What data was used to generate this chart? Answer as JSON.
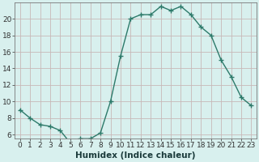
{
  "x": [
    0,
    1,
    2,
    3,
    4,
    5,
    6,
    7,
    8,
    9,
    10,
    11,
    12,
    13,
    14,
    15,
    16,
    17,
    18,
    19,
    20,
    21,
    22,
    23
  ],
  "y": [
    9,
    8,
    7.2,
    7,
    6.5,
    5,
    5.5,
    5.5,
    6.2,
    10,
    15.5,
    20,
    20.5,
    20.5,
    21.5,
    21,
    21.5,
    20.5,
    19,
    18,
    15,
    13,
    10.5,
    9.5
  ],
  "line_color": "#2d7a6a",
  "marker_color": "#2d7a6a",
  "bg_color": "#d8f0ee",
  "grid_color_v": "#c8b8b8",
  "grid_color_h": "#c8b8b8",
  "xlabel": "Humidex (Indice chaleur)",
  "xlim": [
    -0.5,
    23.5
  ],
  "ylim": [
    5.5,
    22.0
  ],
  "yticks": [
    6,
    8,
    10,
    12,
    14,
    16,
    18,
    20
  ],
  "xticks": [
    0,
    1,
    2,
    3,
    4,
    5,
    6,
    7,
    8,
    9,
    10,
    11,
    12,
    13,
    14,
    15,
    16,
    17,
    18,
    19,
    20,
    21,
    22,
    23
  ],
  "xlabel_fontsize": 7.5,
  "tick_fontsize": 6.5,
  "marker_size": 2.5,
  "linewidth": 1.0
}
